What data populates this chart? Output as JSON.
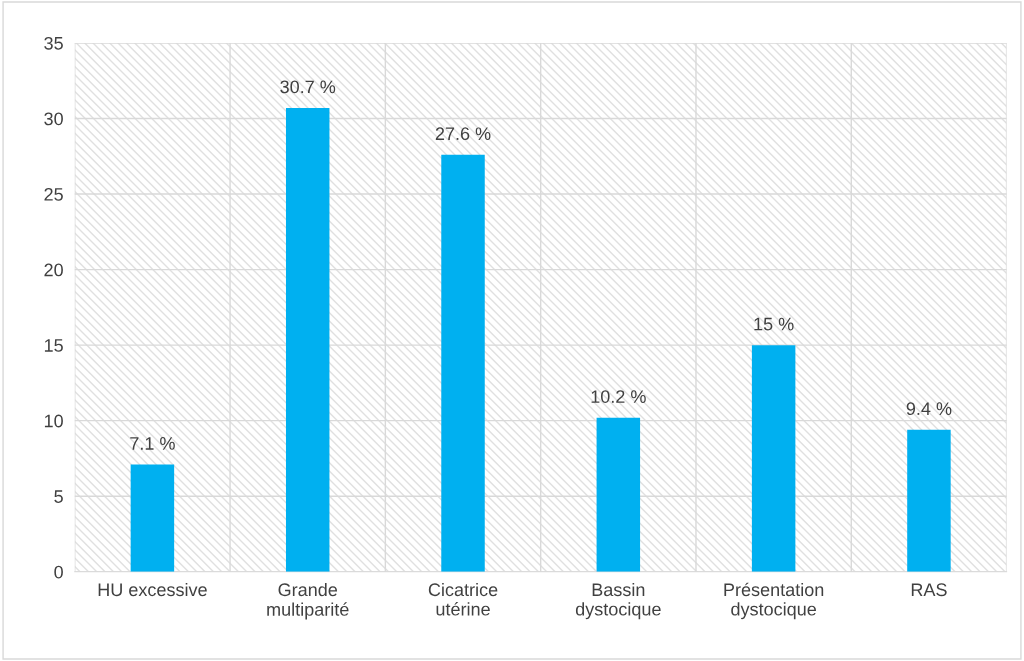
{
  "chart_data": {
    "type": "bar",
    "categories": [
      "HU excessive",
      "Grande\nmultiparité",
      "Cicatrice\nutérine",
      "Bassin\ndystocique",
      "Présentation\ndystocique",
      "RAS"
    ],
    "values": [
      7.1,
      30.7,
      27.6,
      10.2,
      15,
      9.4
    ],
    "value_labels": [
      "7.1 %",
      "30.7 %",
      "27.6 %",
      "10.2 %",
      "15 %",
      "9.4 %"
    ],
    "color": "#00b0f0",
    "ylim": [
      0,
      35
    ],
    "yticks": [
      0,
      5,
      10,
      15,
      20,
      25,
      30,
      35
    ],
    "grid": true,
    "legend": false
  }
}
